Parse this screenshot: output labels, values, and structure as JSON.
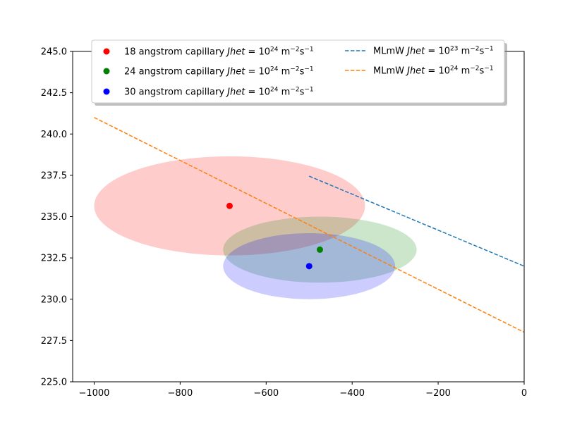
{
  "chart_data": {
    "type": "scatter",
    "title": "",
    "xlabel": "",
    "ylabel": "",
    "xlim": [
      -1050,
      0
    ],
    "ylim": [
      225.0,
      245.0
    ],
    "x_ticks": [
      -1000,
      -800,
      -600,
      -400,
      -200,
      0
    ],
    "y_ticks": [
      225.0,
      227.5,
      230.0,
      232.5,
      235.0,
      237.5,
      240.0,
      242.5,
      245.0
    ],
    "x_tick_labels": [
      "−1000",
      "−800",
      "−600",
      "−400",
      "−200",
      "0"
    ],
    "y_tick_labels": [
      "225.0",
      "227.5",
      "230.0",
      "232.5",
      "235.0",
      "237.5",
      "240.0",
      "242.5",
      "245.0"
    ],
    "grid": false,
    "legend_position": "top",
    "points": [
      {
        "name": "18 angstrom capillary",
        "color": "#ff0000",
        "x": -685,
        "y": 235.65,
        "err_x": 315,
        "err_y": 3.0,
        "fill": "#ff0000",
        "fill_opacity": 0.2
      },
      {
        "name": "24 angstrom capillary",
        "color": "#008000",
        "x": -475,
        "y": 233.0,
        "err_x": 225,
        "err_y": 2.0,
        "fill": "#008000",
        "fill_opacity": 0.2
      },
      {
        "name": "30 angstrom capillary",
        "color": "#0000ff",
        "x": -500,
        "y": 232.0,
        "err_x": 200,
        "err_y": 2.0,
        "fill": "#0000ff",
        "fill_opacity": 0.2
      }
    ],
    "lines": [
      {
        "name": "MLmW",
        "exponent": "23",
        "color": "#1f77b4",
        "style": "dashed",
        "x": [
          -500,
          0
        ],
        "y": [
          237.45,
          232.0
        ]
      },
      {
        "name": "MLmW",
        "exponent": "24",
        "color": "#ff7f0e",
        "style": "dashed",
        "x": [
          -1000,
          0
        ],
        "y": [
          241.0,
          228.0
        ]
      }
    ],
    "legend": {
      "symbol": "Jhet",
      "unit_m": "m",
      "unit_s": "s",
      "unit_exp_m": "−2",
      "unit_exp_s": "−1",
      "base": "10",
      "points_exponent": "24"
    }
  }
}
